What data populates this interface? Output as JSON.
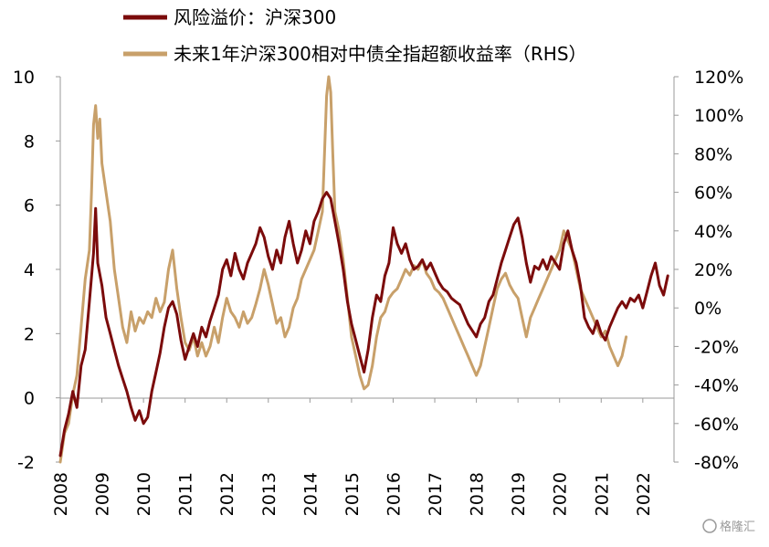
{
  "chart_data": {
    "type": "line",
    "legend_position": "top",
    "grid": false,
    "x_ticks": [
      "2008",
      "2009",
      "2010",
      "2011",
      "2012",
      "2013",
      "2014",
      "2015",
      "2016",
      "2017",
      "2018",
      "2019",
      "2020",
      "2021",
      "2022"
    ],
    "y_left": {
      "range": [
        -2,
        10
      ],
      "ticks": [
        "-2",
        "0",
        "2",
        "4",
        "6",
        "8",
        "10"
      ],
      "negative_color": "#e8141b"
    },
    "y_right": {
      "range": [
        -80,
        120
      ],
      "ticks": [
        "120%",
        "100%",
        "80%",
        "60%",
        "40%",
        "20%",
        "0%",
        "-20%",
        "-40%",
        "-60%",
        "-80%"
      ]
    },
    "series": [
      {
        "name": "风险溢价：沪深300",
        "axis": "left",
        "color": "#7b0b0b",
        "points": [
          [
            2008.0,
            -1.8
          ],
          [
            2008.1,
            -1.0
          ],
          [
            2008.2,
            -0.5
          ],
          [
            2008.3,
            0.2
          ],
          [
            2008.4,
            -0.3
          ],
          [
            2008.5,
            1.0
          ],
          [
            2008.6,
            1.5
          ],
          [
            2008.7,
            3.0
          ],
          [
            2008.8,
            4.5
          ],
          [
            2008.85,
            5.9
          ],
          [
            2008.9,
            4.2
          ],
          [
            2009.0,
            3.5
          ],
          [
            2009.1,
            2.5
          ],
          [
            2009.2,
            2.0
          ],
          [
            2009.3,
            1.5
          ],
          [
            2009.4,
            1.0
          ],
          [
            2009.5,
            0.6
          ],
          [
            2009.6,
            0.2
          ],
          [
            2009.7,
            -0.3
          ],
          [
            2009.8,
            -0.7
          ],
          [
            2009.9,
            -0.4
          ],
          [
            2010.0,
            -0.8
          ],
          [
            2010.1,
            -0.6
          ],
          [
            2010.2,
            0.2
          ],
          [
            2010.3,
            0.8
          ],
          [
            2010.4,
            1.4
          ],
          [
            2010.5,
            2.2
          ],
          [
            2010.6,
            2.8
          ],
          [
            2010.7,
            3.0
          ],
          [
            2010.8,
            2.6
          ],
          [
            2010.9,
            1.8
          ],
          [
            2011.0,
            1.2
          ],
          [
            2011.1,
            1.6
          ],
          [
            2011.2,
            2.0
          ],
          [
            2011.3,
            1.6
          ],
          [
            2011.4,
            2.2
          ],
          [
            2011.5,
            1.9
          ],
          [
            2011.6,
            2.4
          ],
          [
            2011.7,
            2.8
          ],
          [
            2011.8,
            3.2
          ],
          [
            2011.9,
            4.0
          ],
          [
            2012.0,
            4.3
          ],
          [
            2012.1,
            3.8
          ],
          [
            2012.2,
            4.5
          ],
          [
            2012.3,
            4.0
          ],
          [
            2012.4,
            3.7
          ],
          [
            2012.5,
            4.2
          ],
          [
            2012.6,
            4.5
          ],
          [
            2012.7,
            4.8
          ],
          [
            2012.8,
            5.3
          ],
          [
            2012.9,
            5.0
          ],
          [
            2013.0,
            4.4
          ],
          [
            2013.1,
            4.0
          ],
          [
            2013.2,
            4.6
          ],
          [
            2013.3,
            4.2
          ],
          [
            2013.4,
            5.0
          ],
          [
            2013.5,
            5.5
          ],
          [
            2013.6,
            4.8
          ],
          [
            2013.7,
            4.2
          ],
          [
            2013.8,
            4.6
          ],
          [
            2013.9,
            5.2
          ],
          [
            2014.0,
            4.8
          ],
          [
            2014.1,
            5.5
          ],
          [
            2014.2,
            5.8
          ],
          [
            2014.3,
            6.2
          ],
          [
            2014.4,
            6.4
          ],
          [
            2014.5,
            6.2
          ],
          [
            2014.6,
            5.5
          ],
          [
            2014.7,
            4.8
          ],
          [
            2014.8,
            4.0
          ],
          [
            2014.9,
            3.0
          ],
          [
            2015.0,
            2.3
          ],
          [
            2015.1,
            1.8
          ],
          [
            2015.2,
            1.3
          ],
          [
            2015.3,
            0.8
          ],
          [
            2015.4,
            1.5
          ],
          [
            2015.5,
            2.5
          ],
          [
            2015.6,
            3.2
          ],
          [
            2015.7,
            3.0
          ],
          [
            2015.8,
            3.8
          ],
          [
            2015.9,
            4.2
          ],
          [
            2016.0,
            5.3
          ],
          [
            2016.1,
            4.8
          ],
          [
            2016.2,
            4.5
          ],
          [
            2016.3,
            4.8
          ],
          [
            2016.4,
            4.3
          ],
          [
            2016.5,
            4.0
          ],
          [
            2016.6,
            4.1
          ],
          [
            2016.7,
            4.3
          ],
          [
            2016.8,
            4.0
          ],
          [
            2016.9,
            4.2
          ],
          [
            2017.0,
            3.9
          ],
          [
            2017.1,
            3.6
          ],
          [
            2017.2,
            3.4
          ],
          [
            2017.3,
            3.3
          ],
          [
            2017.4,
            3.1
          ],
          [
            2017.5,
            3.0
          ],
          [
            2017.6,
            2.9
          ],
          [
            2017.7,
            2.6
          ],
          [
            2017.8,
            2.3
          ],
          [
            2017.9,
            2.1
          ],
          [
            2018.0,
            1.9
          ],
          [
            2018.1,
            2.3
          ],
          [
            2018.2,
            2.5
          ],
          [
            2018.3,
            3.0
          ],
          [
            2018.4,
            3.2
          ],
          [
            2018.5,
            3.7
          ],
          [
            2018.6,
            4.2
          ],
          [
            2018.7,
            4.6
          ],
          [
            2018.8,
            5.0
          ],
          [
            2018.9,
            5.4
          ],
          [
            2019.0,
            5.6
          ],
          [
            2019.1,
            5.0
          ],
          [
            2019.2,
            4.2
          ],
          [
            2019.3,
            3.6
          ],
          [
            2019.4,
            4.1
          ],
          [
            2019.5,
            4.0
          ],
          [
            2019.6,
            4.3
          ],
          [
            2019.7,
            4.0
          ],
          [
            2019.8,
            4.4
          ],
          [
            2019.9,
            4.2
          ],
          [
            2020.0,
            4.0
          ],
          [
            2020.1,
            4.8
          ],
          [
            2020.2,
            5.2
          ],
          [
            2020.3,
            4.6
          ],
          [
            2020.4,
            4.2
          ],
          [
            2020.5,
            3.5
          ],
          [
            2020.6,
            2.5
          ],
          [
            2020.7,
            2.2
          ],
          [
            2020.8,
            2.0
          ],
          [
            2020.9,
            2.4
          ],
          [
            2021.0,
            2.0
          ],
          [
            2021.1,
            1.8
          ],
          [
            2021.2,
            2.2
          ],
          [
            2021.3,
            2.5
          ],
          [
            2021.4,
            2.8
          ],
          [
            2021.5,
            3.0
          ],
          [
            2021.6,
            2.8
          ],
          [
            2021.7,
            3.1
          ],
          [
            2021.8,
            3.0
          ],
          [
            2021.9,
            3.2
          ],
          [
            2022.0,
            2.8
          ],
          [
            2022.1,
            3.3
          ],
          [
            2022.2,
            3.8
          ],
          [
            2022.3,
            4.2
          ],
          [
            2022.4,
            3.5
          ],
          [
            2022.5,
            3.2
          ],
          [
            2022.6,
            3.8
          ]
        ]
      },
      {
        "name": "未来1年沪深300相对中债全指超额收益率（RHS）",
        "axis": "right",
        "color": "#c8a06a",
        "points": [
          [
            2008.0,
            -80
          ],
          [
            2008.1,
            -65
          ],
          [
            2008.2,
            -60
          ],
          [
            2008.3,
            -45
          ],
          [
            2008.4,
            -35
          ],
          [
            2008.5,
            -10
          ],
          [
            2008.6,
            15
          ],
          [
            2008.7,
            30
          ],
          [
            2008.75,
            60
          ],
          [
            2008.8,
            95
          ],
          [
            2008.85,
            105
          ],
          [
            2008.9,
            88
          ],
          [
            2008.95,
            98
          ],
          [
            2009.0,
            75
          ],
          [
            2009.1,
            60
          ],
          [
            2009.2,
            45
          ],
          [
            2009.3,
            20
          ],
          [
            2009.4,
            5
          ],
          [
            2009.5,
            -10
          ],
          [
            2009.6,
            -18
          ],
          [
            2009.7,
            -2
          ],
          [
            2009.8,
            -12
          ],
          [
            2009.9,
            -5
          ],
          [
            2010.0,
            -8
          ],
          [
            2010.1,
            -2
          ],
          [
            2010.2,
            -5
          ],
          [
            2010.3,
            5
          ],
          [
            2010.4,
            -2
          ],
          [
            2010.5,
            3
          ],
          [
            2010.6,
            20
          ],
          [
            2010.7,
            30
          ],
          [
            2010.8,
            10
          ],
          [
            2010.9,
            -5
          ],
          [
            2011.0,
            -18
          ],
          [
            2011.1,
            -22
          ],
          [
            2011.2,
            -15
          ],
          [
            2011.3,
            -25
          ],
          [
            2011.4,
            -18
          ],
          [
            2011.5,
            -25
          ],
          [
            2011.6,
            -20
          ],
          [
            2011.7,
            -10
          ],
          [
            2011.8,
            -18
          ],
          [
            2011.9,
            -5
          ],
          [
            2012.0,
            5
          ],
          [
            2012.1,
            -2
          ],
          [
            2012.2,
            -5
          ],
          [
            2012.3,
            -10
          ],
          [
            2012.4,
            -2
          ],
          [
            2012.5,
            -8
          ],
          [
            2012.6,
            -5
          ],
          [
            2012.7,
            2
          ],
          [
            2012.8,
            10
          ],
          [
            2012.9,
            20
          ],
          [
            2013.0,
            12
          ],
          [
            2013.1,
            2
          ],
          [
            2013.2,
            -8
          ],
          [
            2013.3,
            -5
          ],
          [
            2013.4,
            -15
          ],
          [
            2013.5,
            -10
          ],
          [
            2013.6,
            0
          ],
          [
            2013.7,
            5
          ],
          [
            2013.8,
            15
          ],
          [
            2013.9,
            20
          ],
          [
            2014.0,
            25
          ],
          [
            2014.1,
            30
          ],
          [
            2014.2,
            40
          ],
          [
            2014.3,
            50
          ],
          [
            2014.35,
            80
          ],
          [
            2014.4,
            110
          ],
          [
            2014.45,
            120
          ],
          [
            2014.5,
            112
          ],
          [
            2014.55,
            80
          ],
          [
            2014.6,
            50
          ],
          [
            2014.7,
            40
          ],
          [
            2014.8,
            25
          ],
          [
            2014.9,
            5
          ],
          [
            2015.0,
            -15
          ],
          [
            2015.1,
            -25
          ],
          [
            2015.2,
            -35
          ],
          [
            2015.3,
            -42
          ],
          [
            2015.4,
            -40
          ],
          [
            2015.5,
            -30
          ],
          [
            2015.6,
            -15
          ],
          [
            2015.7,
            -5
          ],
          [
            2015.8,
            -2
          ],
          [
            2015.9,
            5
          ],
          [
            2016.0,
            8
          ],
          [
            2016.1,
            10
          ],
          [
            2016.2,
            15
          ],
          [
            2016.3,
            20
          ],
          [
            2016.4,
            17
          ],
          [
            2016.5,
            22
          ],
          [
            2016.6,
            20
          ],
          [
            2016.7,
            25
          ],
          [
            2016.8,
            18
          ],
          [
            2016.9,
            15
          ],
          [
            2017.0,
            10
          ],
          [
            2017.1,
            8
          ],
          [
            2017.2,
            5
          ],
          [
            2017.3,
            0
          ],
          [
            2017.4,
            -5
          ],
          [
            2017.5,
            -10
          ],
          [
            2017.6,
            -15
          ],
          [
            2017.7,
            -20
          ],
          [
            2017.8,
            -25
          ],
          [
            2017.9,
            -30
          ],
          [
            2018.0,
            -35
          ],
          [
            2018.1,
            -30
          ],
          [
            2018.2,
            -20
          ],
          [
            2018.3,
            -10
          ],
          [
            2018.4,
            0
          ],
          [
            2018.5,
            10
          ],
          [
            2018.6,
            15
          ],
          [
            2018.7,
            18
          ],
          [
            2018.8,
            12
          ],
          [
            2018.9,
            8
          ],
          [
            2019.0,
            5
          ],
          [
            2019.1,
            -5
          ],
          [
            2019.2,
            -15
          ],
          [
            2019.3,
            -5
          ],
          [
            2019.4,
            0
          ],
          [
            2019.5,
            5
          ],
          [
            2019.6,
            10
          ],
          [
            2019.7,
            15
          ],
          [
            2019.8,
            20
          ],
          [
            2019.9,
            25
          ],
          [
            2020.0,
            30
          ],
          [
            2020.1,
            40
          ],
          [
            2020.2,
            35
          ],
          [
            2020.3,
            30
          ],
          [
            2020.4,
            20
          ],
          [
            2020.5,
            10
          ],
          [
            2020.6,
            5
          ],
          [
            2020.7,
            0
          ],
          [
            2020.8,
            -5
          ],
          [
            2020.9,
            -10
          ],
          [
            2021.0,
            -15
          ],
          [
            2021.1,
            -12
          ],
          [
            2021.2,
            -20
          ],
          [
            2021.3,
            -25
          ],
          [
            2021.4,
            -30
          ],
          [
            2021.5,
            -25
          ],
          [
            2021.6,
            -15
          ]
        ]
      }
    ]
  },
  "watermark": "格隆汇"
}
